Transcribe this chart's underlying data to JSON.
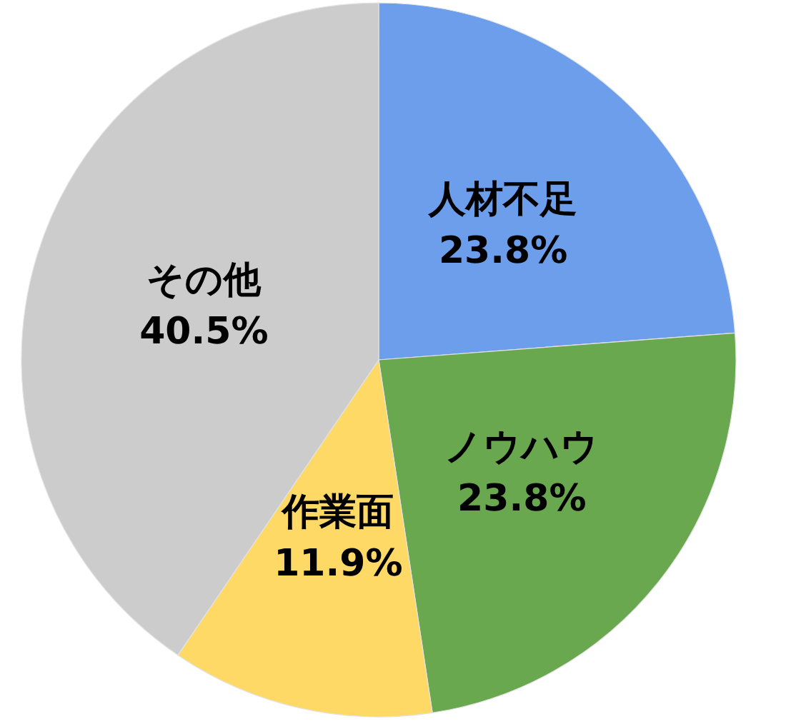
{
  "chart_data": {
    "type": "pie",
    "categories": [
      "人材不足",
      "ノウハウ",
      "作業面",
      "その他"
    ],
    "values": [
      23.8,
      23.8,
      11.9,
      40.5
    ],
    "colors": [
      "#6d9eeb",
      "#6aa84f",
      "#ffd966",
      "#cccccc"
    ],
    "value_labels": [
      "23.8%",
      "23.8%",
      "11.9%",
      "40.5%"
    ]
  }
}
